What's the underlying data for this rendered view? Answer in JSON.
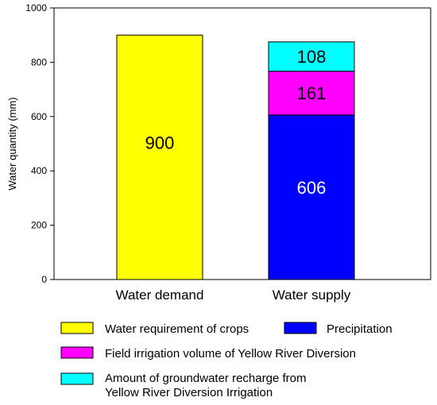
{
  "chart_data": {
    "type": "bar",
    "stacked": true,
    "title": "",
    "xlabel": "",
    "ylabel": "Water quantity (mm)",
    "ylim": [
      0,
      1000
    ],
    "yticks": [
      0,
      200,
      400,
      600,
      800,
      1000
    ],
    "grid": false,
    "legend_position": "bottom",
    "categories": [
      "Water demand",
      "Water supply"
    ],
    "series": [
      {
        "name": "Water requirement of crops",
        "color": "#ffff00",
        "values": [
          900,
          null
        ],
        "labels": [
          "900",
          ""
        ],
        "label_color": "#000000"
      },
      {
        "name": "Precipitation",
        "color": "#0000ff",
        "values": [
          null,
          606
        ],
        "labels": [
          "",
          "606"
        ],
        "label_color": "#ffffff"
      },
      {
        "name": "Field irrigation volume of Yellow River Diversion",
        "color": "#ff00ff",
        "values": [
          null,
          161
        ],
        "labels": [
          "",
          "161"
        ],
        "label_color": "#000000"
      },
      {
        "name": "Amount of groundwater recharge from Yellow River Diversion Irrigation",
        "color": "#00ffff",
        "values": [
          null,
          108
        ],
        "labels": [
          "",
          "108"
        ],
        "label_color": "#000000"
      }
    ],
    "legend": {
      "rows": [
        [
          "Water requirement of crops",
          "Precipitation"
        ],
        [
          "Field irrigation volume of Yellow River Diversion"
        ],
        [
          "Amount of groundwater recharge from",
          "Yellow River Diversion Irrigation"
        ]
      ]
    }
  }
}
